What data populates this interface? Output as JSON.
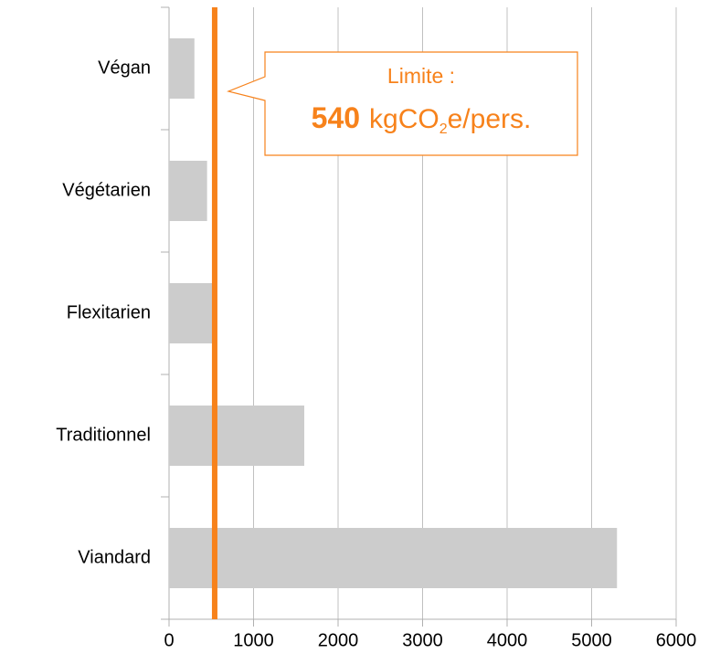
{
  "chart_data": {
    "type": "hbar",
    "categories": [
      "Végan",
      "Végétarien",
      "Flexitarien",
      "Traditionnel",
      "Viandard"
    ],
    "values": [
      300,
      450,
      560,
      1600,
      5300
    ],
    "color": "#cccccc",
    "xlim": [
      0,
      6000
    ],
    "xticks": [
      0,
      1000,
      2000,
      3000,
      4000,
      5000,
      6000
    ],
    "grid": true,
    "limit": {
      "value": 540,
      "color": "#f7821b",
      "label": "Limite :",
      "unit": [
        "kgCO",
        "2",
        "e/pers."
      ]
    }
  }
}
